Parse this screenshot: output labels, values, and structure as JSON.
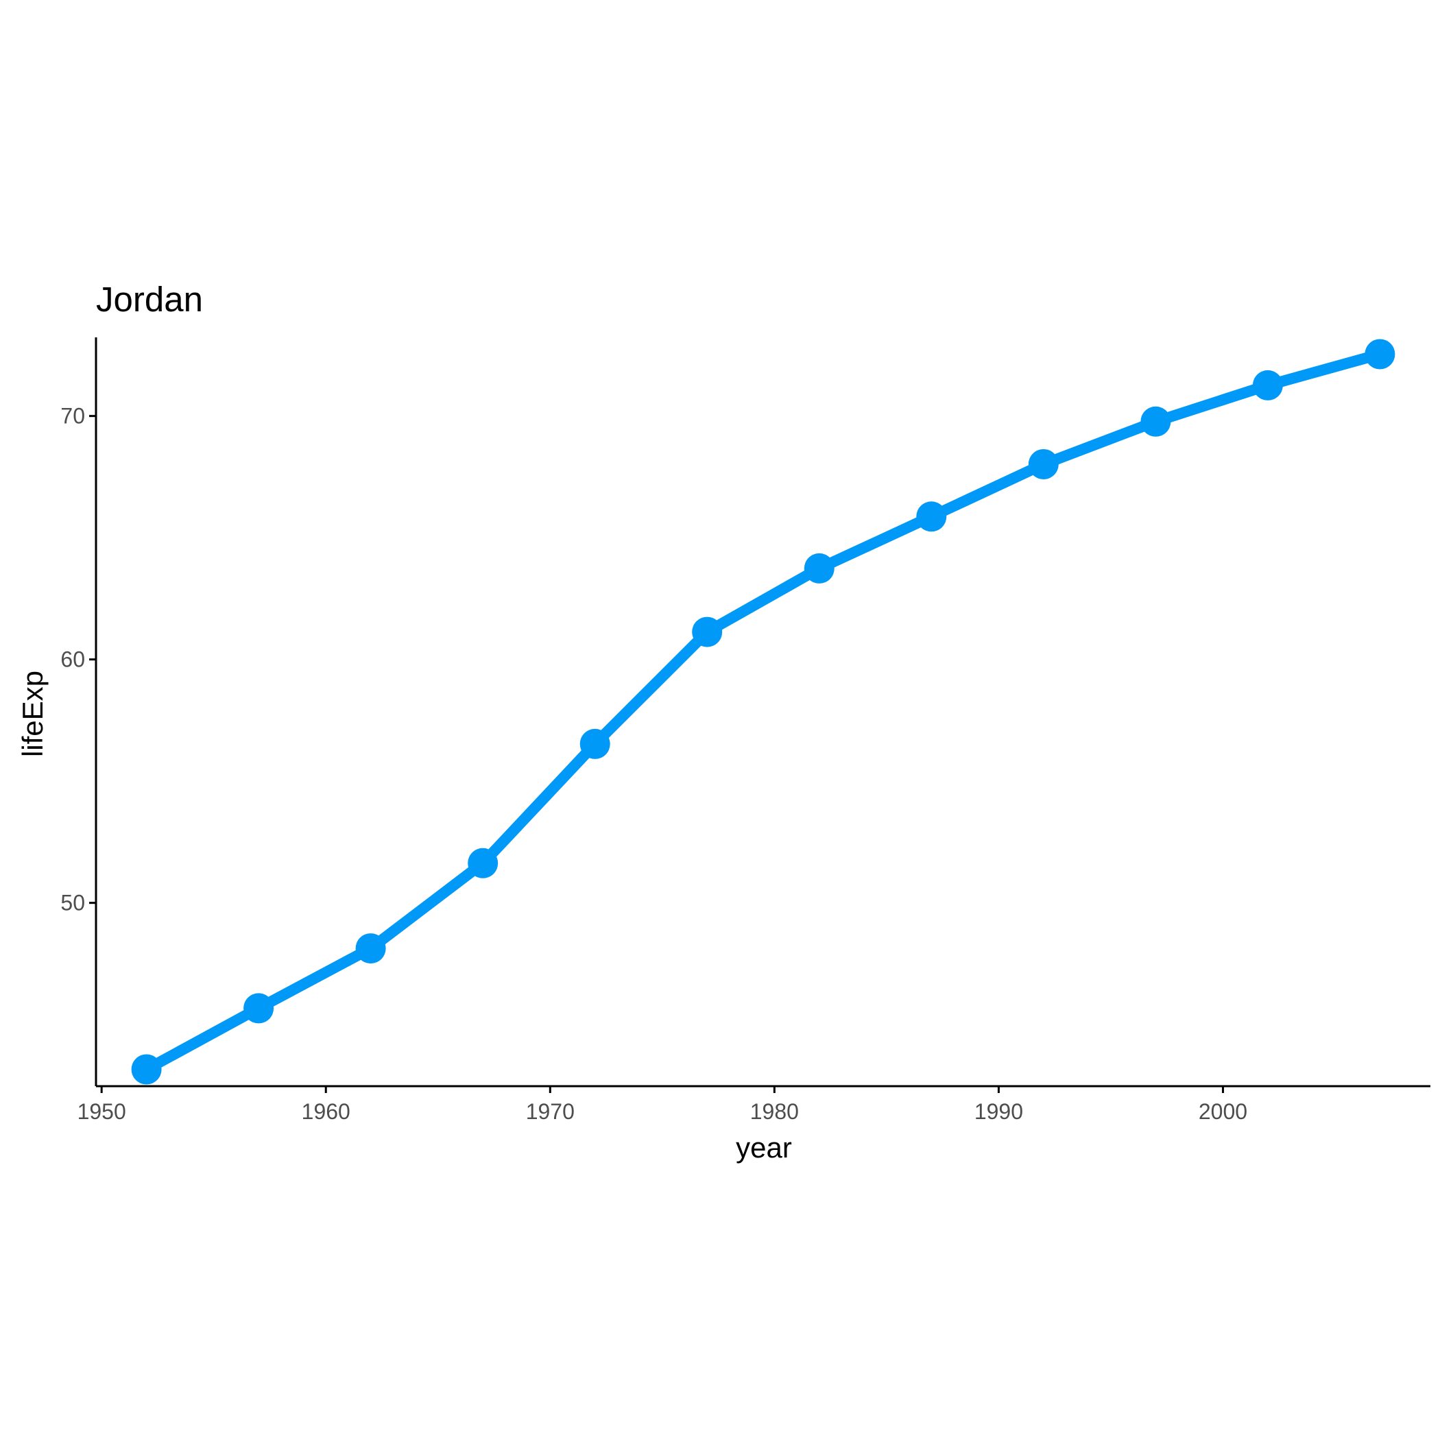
{
  "chart_data": {
    "type": "line",
    "title": "Jordan",
    "xlabel": "year",
    "ylabel": "lifeExp",
    "x": [
      1952,
      1957,
      1962,
      1967,
      1972,
      1977,
      1982,
      1987,
      1992,
      1997,
      2002,
      2007
    ],
    "series": [
      {
        "values": [
          43.16,
          45.67,
          48.13,
          51.63,
          56.53,
          61.13,
          63.74,
          65.87,
          68.02,
          69.77,
          71.26,
          72.54
        ]
      }
    ],
    "xticks": [
      1950,
      1960,
      1970,
      1980,
      1990,
      2000
    ],
    "yticks": [
      50,
      60,
      70
    ],
    "xlim": [
      1949.75,
      2009.25
    ],
    "ylim": [
      42.47,
      73.23
    ],
    "grid": false,
    "legend": "none",
    "colors": {
      "series": "#0099f8",
      "axis": "#000000",
      "tick_text": "#4d4d4d"
    }
  }
}
